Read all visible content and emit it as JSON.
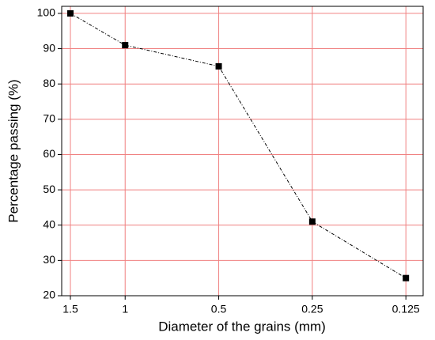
{
  "chart_data": {
    "type": "line",
    "x_label": "Diameter of the grains (mm)",
    "y_label": "Percentage passing (%)",
    "x": [
      1.5,
      1,
      0.5,
      0.25,
      0.125
    ],
    "series": [
      {
        "color": "#000000",
        "values": [
          100,
          91,
          85,
          41,
          25
        ]
      }
    ],
    "xlim": [
      1.6,
      0.11
    ],
    "x_scale": "log",
    "x_reversed": true,
    "xticks": [
      1.5,
      1,
      0.5,
      0.25,
      0.125
    ],
    "ylim": [
      20,
      102
    ],
    "yticks": [
      20,
      30,
      40,
      50,
      60,
      70,
      80,
      90,
      100
    ],
    "grid": true,
    "grid_color": "#f08080"
  }
}
